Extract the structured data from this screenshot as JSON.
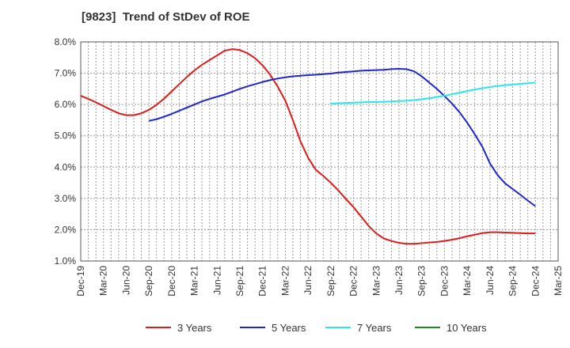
{
  "chart_data": {
    "type": "line",
    "title": "[9823]  Trend of StDev of ROE",
    "xlabel": "",
    "ylabel": "",
    "ylim": [
      1.0,
      8.0
    ],
    "yticks": [
      1.0,
      2.0,
      3.0,
      4.0,
      5.0,
      6.0,
      7.0,
      8.0
    ],
    "ytick_labels": [
      "1.0%",
      "2.0%",
      "3.0%",
      "4.0%",
      "5.0%",
      "6.0%",
      "7.0%",
      "8.0%"
    ],
    "categories": [
      "Dec-19",
      "Mar-20",
      "Jun-20",
      "Sep-20",
      "Dec-20",
      "Mar-21",
      "Jun-21",
      "Sep-21",
      "Dec-21",
      "Mar-22",
      "Jun-22",
      "Sep-22",
      "Dec-22",
      "Mar-23",
      "Jun-23",
      "Sep-23",
      "Dec-23",
      "Mar-24",
      "Jun-24",
      "Sep-24",
      "Dec-24",
      "Mar-25"
    ],
    "grid": true,
    "legend_position": "bottom",
    "series": [
      {
        "name": "3 Years",
        "color": "#dd1c1c",
        "x": [
          "Dec-19",
          "Jan-20",
          "Feb-20",
          "Mar-20",
          "Apr-20",
          "May-20",
          "Jun-20",
          "Jul-20",
          "Aug-20",
          "Sep-20",
          "Oct-20",
          "Nov-20",
          "Dec-20",
          "Jan-21",
          "Feb-21",
          "Mar-21",
          "Apr-21",
          "May-21",
          "Jun-21",
          "Jul-21",
          "Aug-21",
          "Sep-21",
          "Oct-21",
          "Nov-21",
          "Dec-21",
          "Jan-22",
          "Feb-22",
          "Mar-22",
          "Apr-22",
          "May-22",
          "Jun-22",
          "Jul-22",
          "Aug-22",
          "Sep-22",
          "Oct-22",
          "Nov-22",
          "Dec-22",
          "Jan-23",
          "Feb-23",
          "Mar-23",
          "Apr-23",
          "May-23",
          "Jun-23",
          "Jul-23",
          "Aug-23",
          "Sep-23",
          "Oct-23",
          "Nov-23",
          "Dec-23",
          "Jan-24",
          "Feb-24",
          "Mar-24",
          "Apr-24",
          "May-24",
          "Jun-24",
          "Jul-24",
          "Aug-24",
          "Sep-24",
          "Oct-24",
          "Nov-24",
          "Dec-24"
        ],
        "values": [
          6.28,
          6.18,
          6.07,
          5.95,
          5.83,
          5.72,
          5.66,
          5.66,
          5.72,
          5.83,
          5.99,
          6.19,
          6.42,
          6.65,
          6.88,
          7.09,
          7.27,
          7.42,
          7.57,
          7.72,
          7.77,
          7.74,
          7.64,
          7.48,
          7.25,
          6.95,
          6.57,
          6.12,
          5.5,
          4.82,
          4.3,
          3.92,
          3.72,
          3.5,
          3.25,
          2.98,
          2.72,
          2.42,
          2.12,
          1.88,
          1.72,
          1.64,
          1.58,
          1.55,
          1.55,
          1.57,
          1.59,
          1.61,
          1.64,
          1.68,
          1.73,
          1.79,
          1.84,
          1.89,
          1.92,
          1.92,
          1.91,
          1.9,
          1.89,
          1.88,
          1.88
        ]
      },
      {
        "name": "5 Years",
        "color": "#1f28c7",
        "x": [
          "Sep-20",
          "Oct-20",
          "Nov-20",
          "Dec-20",
          "Jan-21",
          "Feb-21",
          "Mar-21",
          "Apr-21",
          "May-21",
          "Jun-21",
          "Jul-21",
          "Aug-21",
          "Sep-21",
          "Oct-21",
          "Nov-21",
          "Dec-21",
          "Jan-22",
          "Feb-22",
          "Mar-22",
          "Apr-22",
          "May-22",
          "Jun-22",
          "Jul-22",
          "Aug-22",
          "Sep-22",
          "Oct-22",
          "Nov-22",
          "Dec-22",
          "Jan-23",
          "Feb-23",
          "Mar-23",
          "Apr-23",
          "May-23",
          "Jun-23",
          "Jul-23",
          "Aug-23",
          "Sep-23",
          "Oct-23",
          "Nov-23",
          "Dec-23",
          "Jan-24",
          "Feb-24",
          "Mar-24",
          "Apr-24",
          "May-24",
          "Jun-24",
          "Jul-24",
          "Aug-24",
          "Sep-24",
          "Oct-24",
          "Nov-24",
          "Dec-24"
        ],
        "values": [
          5.48,
          5.53,
          5.61,
          5.7,
          5.8,
          5.9,
          6.0,
          6.1,
          6.18,
          6.25,
          6.32,
          6.41,
          6.5,
          6.58,
          6.65,
          6.72,
          6.78,
          6.83,
          6.87,
          6.9,
          6.92,
          6.94,
          6.95,
          6.97,
          6.99,
          7.02,
          7.04,
          7.06,
          7.08,
          7.09,
          7.1,
          7.11,
          7.13,
          7.14,
          7.13,
          7.06,
          6.9,
          6.7,
          6.5,
          6.27,
          6.03,
          5.75,
          5.42,
          5.05,
          4.65,
          4.12,
          3.75,
          3.48,
          3.3,
          3.12,
          2.93,
          2.75
        ]
      },
      {
        "name": "7 Years",
        "color": "#2ae8e8",
        "x": [
          "Sep-22",
          "Oct-22",
          "Nov-22",
          "Dec-22",
          "Jan-23",
          "Feb-23",
          "Mar-23",
          "Apr-23",
          "May-23",
          "Jun-23",
          "Jul-23",
          "Aug-23",
          "Sep-23",
          "Oct-23",
          "Nov-23",
          "Dec-23",
          "Jan-24",
          "Feb-24",
          "Mar-24",
          "Apr-24",
          "May-24",
          "Jun-24",
          "Jul-24",
          "Aug-24",
          "Sep-24",
          "Oct-24",
          "Nov-24",
          "Dec-24"
        ],
        "values": [
          6.03,
          6.04,
          6.05,
          6.06,
          6.07,
          6.08,
          6.08,
          6.09,
          6.1,
          6.11,
          6.12,
          6.14,
          6.17,
          6.2,
          6.24,
          6.28,
          6.33,
          6.38,
          6.43,
          6.48,
          6.52,
          6.56,
          6.59,
          6.62,
          6.64,
          6.66,
          6.68,
          6.7
        ]
      },
      {
        "name": "10 Years",
        "color": "#1f8a1f",
        "x": [],
        "values": []
      }
    ]
  }
}
